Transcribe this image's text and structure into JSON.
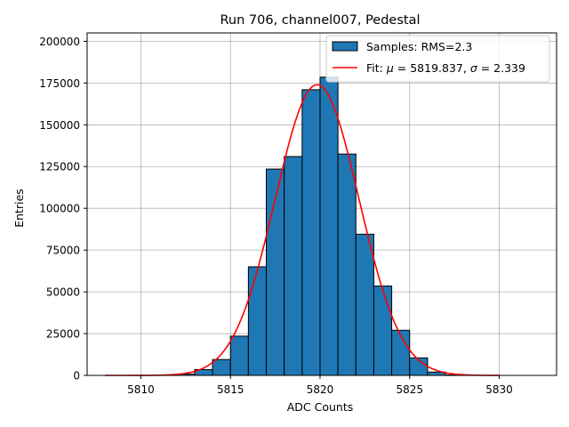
{
  "chart_data": {
    "type": "bar",
    "title": "Run 706, channel007, Pedestal",
    "xlabel": "ADC Counts",
    "ylabel": "Entries",
    "xlim": [
      5807.0,
      5833.2
    ],
    "ylim": [
      0,
      205000
    ],
    "xticks": [
      5810,
      5815,
      5820,
      5825,
      5830
    ],
    "yticks": [
      0,
      25000,
      50000,
      75000,
      100000,
      125000,
      150000,
      175000,
      200000
    ],
    "grid": true,
    "legend_position": "top-right",
    "bins": [
      {
        "left": 5811,
        "right": 5812,
        "value": 100
      },
      {
        "left": 5812,
        "right": 5813,
        "value": 800
      },
      {
        "left": 5813,
        "right": 5814,
        "value": 3500
      },
      {
        "left": 5814,
        "right": 5815,
        "value": 9500
      },
      {
        "left": 5815,
        "right": 5816,
        "value": 23500
      },
      {
        "left": 5816,
        "right": 5817,
        "value": 65000
      },
      {
        "left": 5817,
        "right": 5818,
        "value": 123500
      },
      {
        "left": 5818,
        "right": 5819,
        "value": 131000
      },
      {
        "left": 5819,
        "right": 5820,
        "value": 171000
      },
      {
        "left": 5820,
        "right": 5821,
        "value": 178500
      },
      {
        "left": 5821,
        "right": 5822,
        "value": 132500
      },
      {
        "left": 5822,
        "right": 5823,
        "value": 84500
      },
      {
        "left": 5823,
        "right": 5824,
        "value": 53500
      },
      {
        "left": 5824,
        "right": 5825,
        "value": 27000
      },
      {
        "left": 5825,
        "right": 5826,
        "value": 10500
      },
      {
        "left": 5826,
        "right": 5827,
        "value": 2000
      },
      {
        "left": 5827,
        "right": 5828,
        "value": 300
      }
    ],
    "fit": {
      "mu": 5819.837,
      "sigma": 2.339,
      "amplitude": 174000,
      "range": [
        5808,
        5830
      ]
    },
    "series": [
      {
        "name": "Samples: RMS=2.3",
        "color": "#1f77b4",
        "edge": "#000000"
      },
      {
        "name_prefix": "Fit: ",
        "mu_label": "μ",
        "mu_text": " = 5819.837, ",
        "sigma_label": "σ",
        "sigma_text": " = 2.339",
        "color": "#ff0000"
      }
    ]
  }
}
